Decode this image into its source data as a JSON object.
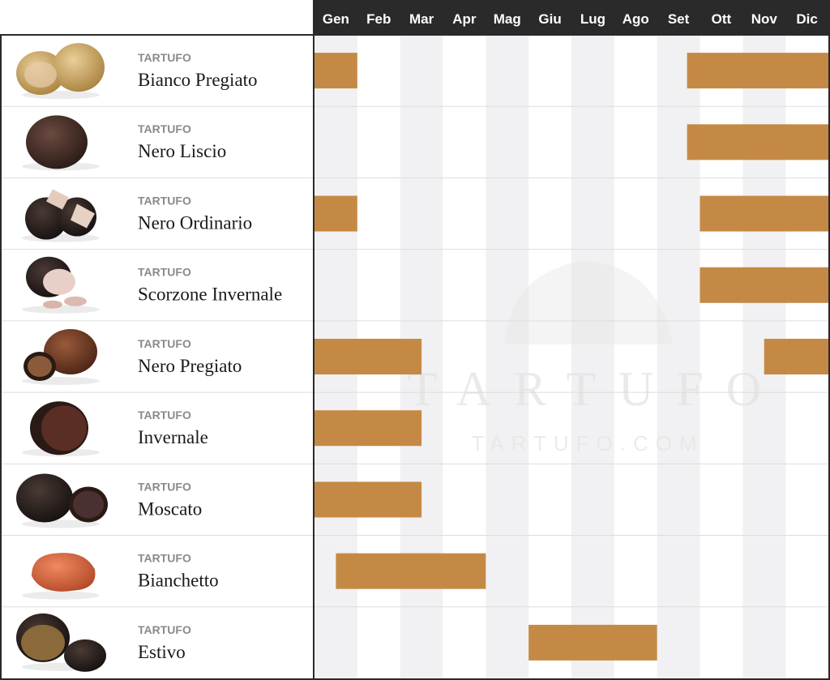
{
  "watermark": {
    "main": "TARTUFO",
    "sub": "TARTUFO.COM"
  },
  "colors": {
    "bar": "#c48a45",
    "header_bg": "#2a2a2a",
    "header_text": "#ffffff",
    "stripe": "#f1f1f3",
    "border": "#2a2a2a",
    "row_line": "#dddddd",
    "category_label": "#8a8a8a",
    "name_text": "#1a1a1a"
  },
  "chart_data": {
    "type": "gantt",
    "title": "",
    "months": [
      "Gen",
      "Feb",
      "Mar",
      "Apr",
      "Mag",
      "Giu",
      "Lug",
      "Ago",
      "Set",
      "Ott",
      "Nov",
      "Dic"
    ],
    "rows": [
      {
        "category": "TARTUFO",
        "name": "Bianco Pregiato",
        "image": "white-truffle-image",
        "periods": [
          [
            1,
            2
          ],
          [
            9.7,
            13
          ]
        ]
      },
      {
        "category": "TARTUFO",
        "name": "Nero Liscio",
        "image": "black-smooth-truffle-image",
        "periods": [
          [
            9.7,
            13
          ]
        ]
      },
      {
        "category": "TARTUFO",
        "name": "Nero Ordinario",
        "image": "black-ordinary-truffle-image",
        "periods": [
          [
            1,
            2
          ],
          [
            10,
            13
          ]
        ]
      },
      {
        "category": "TARTUFO",
        "name": "Scorzone Invernale",
        "image": "scorzone-truffle-image",
        "periods": [
          [
            10,
            13
          ]
        ]
      },
      {
        "category": "TARTUFO",
        "name": "Nero Pregiato",
        "image": "black-precious-truffle-image",
        "periods": [
          [
            1,
            3.5
          ],
          [
            11.5,
            13
          ]
        ]
      },
      {
        "category": "TARTUFO",
        "name": "Invernale",
        "image": "winter-truffle-image",
        "periods": [
          [
            1,
            3.5
          ]
        ]
      },
      {
        "category": "TARTUFO",
        "name": "Moscato",
        "image": "moscato-truffle-image",
        "periods": [
          [
            1,
            3.5
          ]
        ]
      },
      {
        "category": "TARTUFO",
        "name": "Bianchetto",
        "image": "bianchetto-truffle-image",
        "periods": [
          [
            1.5,
            5
          ]
        ]
      },
      {
        "category": "TARTUFO",
        "name": "Estivo",
        "image": "summer-truffle-image",
        "periods": [
          [
            6,
            9
          ]
        ]
      }
    ]
  }
}
